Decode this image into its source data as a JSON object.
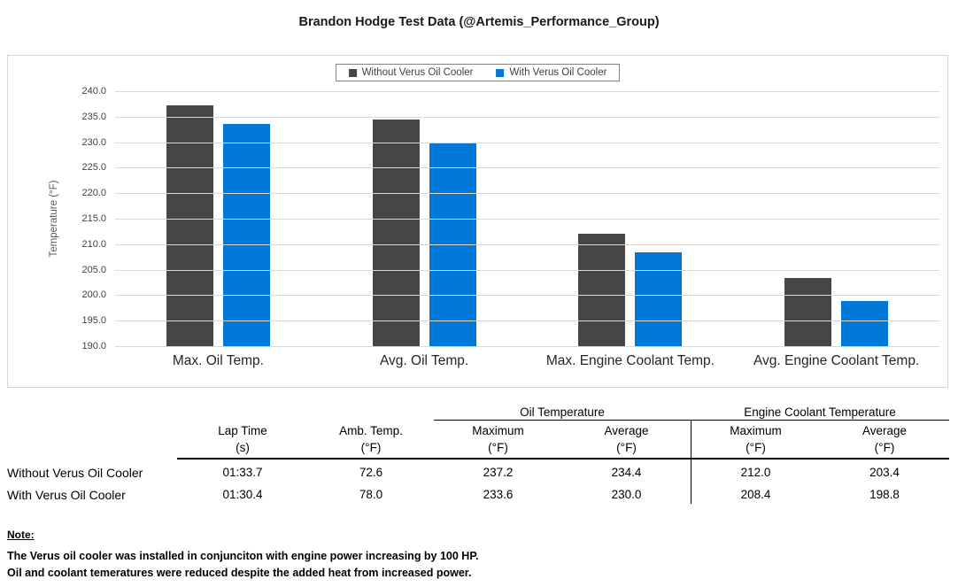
{
  "title": "Brandon Hodge Test Data (@Artemis_Performance_Group)",
  "chart_data": {
    "type": "bar",
    "title": "Brandon Hodge Test Data (@Artemis_Performance_Group)",
    "categories": [
      "Max. Oil Temp.",
      "Avg. Oil Temp.",
      "Max. Engine Coolant Temp.",
      "Avg. Engine Coolant Temp."
    ],
    "series": [
      {
        "name": "Without Verus Oil Cooler",
        "color": "#464646",
        "values": [
          237.2,
          234.4,
          212.0,
          203.4
        ]
      },
      {
        "name": "With Verus Oil Cooler",
        "color": "#0078D7",
        "values": [
          233.6,
          230.0,
          208.4,
          198.8
        ]
      }
    ],
    "xlabel": "",
    "ylabel": "Temperature (°F)",
    "ylim": [
      190,
      240
    ],
    "ytick_step": 5,
    "yticks": [
      "240.0",
      "235.0",
      "230.0",
      "225.0",
      "220.0",
      "215.0",
      "210.0",
      "205.0",
      "200.0",
      "195.0",
      "190.0"
    ],
    "grid": true,
    "gridline_color": "#d9d9d9",
    "legend_position": "top-center"
  },
  "table": {
    "group_headers": [
      {
        "label": "Oil Temperature",
        "span": 2
      },
      {
        "label": "Engine Coolant Temperature",
        "span": 2
      }
    ],
    "columns": [
      {
        "label": "Lap Time",
        "unit": "(s)"
      },
      {
        "label": "Amb. Temp.",
        "unit": "(°F)"
      },
      {
        "label": "Maximum",
        "unit": "(°F)"
      },
      {
        "label": "Average",
        "unit": "(°F)"
      },
      {
        "label": "Maximum",
        "unit": "(°F)"
      },
      {
        "label": "Average",
        "unit": "(°F)"
      }
    ],
    "rows": [
      {
        "label": "Without Verus Oil Cooler",
        "values": [
          "01:33.7",
          "72.6",
          "237.2",
          "234.4",
          "212.0",
          "203.4"
        ]
      },
      {
        "label": "With Verus Oil Cooler",
        "values": [
          "01:30.4",
          "78.0",
          "233.6",
          "230.0",
          "208.4",
          "198.8"
        ]
      }
    ]
  },
  "note": {
    "heading": "Note:",
    "lines": [
      "The Verus oil cooler was installed in conjunciton with engine power increasing by 100 HP.",
      "Oil and coolant temeratures were reduced despite the added heat from increased power."
    ]
  }
}
